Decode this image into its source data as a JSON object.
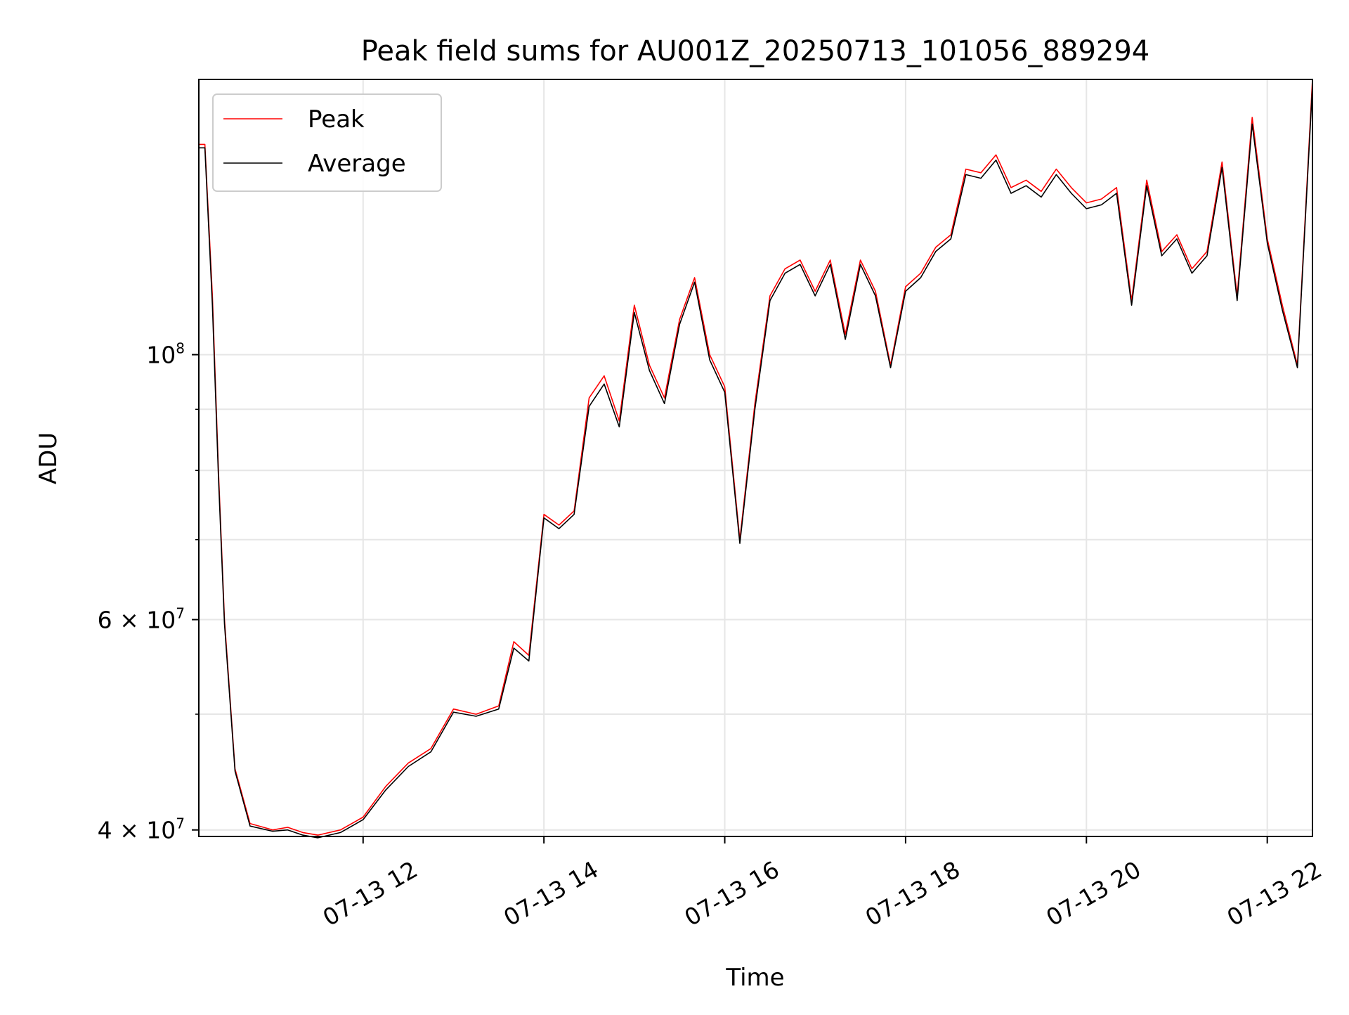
{
  "chart_data": {
    "type": "line",
    "title": "Peak field sums for AU001Z_20250713_101056_889294",
    "xlabel": "Time",
    "ylabel": "ADU",
    "xscale": "time",
    "yscale": "log",
    "grid": true,
    "legend_position": "top-left",
    "xlim": [
      "2025-07-13T10:11",
      "2025-07-13T22:30"
    ],
    "ylim": [
      39500000,
      170000000
    ],
    "x_ticks": [
      {
        "t": "2025-07-13T12:00",
        "label": "07-13 12"
      },
      {
        "t": "2025-07-13T14:00",
        "label": "07-13 14"
      },
      {
        "t": "2025-07-13T16:00",
        "label": "07-13 16"
      },
      {
        "t": "2025-07-13T18:00",
        "label": "07-13 18"
      },
      {
        "t": "2025-07-13T20:00",
        "label": "07-13 20"
      },
      {
        "t": "2025-07-13T22:00",
        "label": "07-13 22"
      }
    ],
    "y_major_ticks": [
      {
        "value": 40000000,
        "base": "4 × 10",
        "exp": "7"
      },
      {
        "value": 60000000,
        "base": "6 × 10",
        "exp": "7"
      },
      {
        "value": 100000000,
        "base": "10",
        "exp": "8"
      }
    ],
    "y_minor_gridlines": [
      50000000,
      70000000,
      80000000,
      90000000
    ],
    "series": [
      {
        "name": "Peak",
        "color": "#ff0000",
        "x": [
          "2025-07-13T10:11",
          "2025-07-13T10:15",
          "2025-07-13T10:20",
          "2025-07-13T10:24",
          "2025-07-13T10:28",
          "2025-07-13T10:35",
          "2025-07-13T10:45",
          "2025-07-13T11:00",
          "2025-07-13T11:10",
          "2025-07-13T11:20",
          "2025-07-13T11:30",
          "2025-07-13T11:45",
          "2025-07-13T12:00",
          "2025-07-13T12:15",
          "2025-07-13T12:30",
          "2025-07-13T12:45",
          "2025-07-13T13:00",
          "2025-07-13T13:15",
          "2025-07-13T13:30",
          "2025-07-13T13:40",
          "2025-07-13T13:50",
          "2025-07-13T14:00",
          "2025-07-13T14:10",
          "2025-07-13T14:20",
          "2025-07-13T14:30",
          "2025-07-13T14:40",
          "2025-07-13T14:50",
          "2025-07-13T15:00",
          "2025-07-13T15:10",
          "2025-07-13T15:20",
          "2025-07-13T15:30",
          "2025-07-13T15:40",
          "2025-07-13T15:50",
          "2025-07-13T16:00",
          "2025-07-13T16:10",
          "2025-07-13T16:20",
          "2025-07-13T16:30",
          "2025-07-13T16:40",
          "2025-07-13T16:50",
          "2025-07-13T17:00",
          "2025-07-13T17:10",
          "2025-07-13T17:20",
          "2025-07-13T17:30",
          "2025-07-13T17:40",
          "2025-07-13T17:50",
          "2025-07-13T18:00",
          "2025-07-13T18:10",
          "2025-07-13T18:20",
          "2025-07-13T18:30",
          "2025-07-13T18:40",
          "2025-07-13T18:50",
          "2025-07-13T19:00",
          "2025-07-13T19:10",
          "2025-07-13T19:20",
          "2025-07-13T19:30",
          "2025-07-13T19:40",
          "2025-07-13T19:50",
          "2025-07-13T20:00",
          "2025-07-13T20:10",
          "2025-07-13T20:20",
          "2025-07-13T20:30",
          "2025-07-13T20:40",
          "2025-07-13T20:50",
          "2025-07-13T21:00",
          "2025-07-13T21:10",
          "2025-07-13T21:20",
          "2025-07-13T21:30",
          "2025-07-13T21:40",
          "2025-07-13T21:50",
          "2025-07-13T22:00",
          "2025-07-13T22:10",
          "2025-07-13T22:20",
          "2025-07-13T22:30"
        ],
        "values": [
          150000000,
          150000000,
          112000000,
          80000000,
          60000000,
          45000000,
          40500000,
          40000000,
          40200000,
          39800000,
          39600000,
          40000000,
          41000000,
          43500000,
          45500000,
          46800000,
          50500000,
          50000000,
          50800000,
          57500000,
          56000000,
          73500000,
          72000000,
          74000000,
          92000000,
          96000000,
          88000000,
          110000000,
          98000000,
          92000000,
          107000000,
          116000000,
          100000000,
          94000000,
          70000000,
          91000000,
          112000000,
          118000000,
          120000000,
          113000000,
          120000000,
          104000000,
          120000000,
          113000000,
          98000000,
          114000000,
          117000000,
          123000000,
          126000000,
          143000000,
          142000000,
          147000000,
          138000000,
          140000000,
          137000000,
          143000000,
          138000000,
          134000000,
          135000000,
          138000000,
          111000000,
          140000000,
          122000000,
          126000000,
          118000000,
          122000000,
          145000000,
          112000000,
          158000000,
          125000000,
          110000000,
          98000000,
          170000000
        ]
      },
      {
        "name": "Average",
        "color": "#000000",
        "x": [
          "2025-07-13T10:11",
          "2025-07-13T10:15",
          "2025-07-13T10:20",
          "2025-07-13T10:24",
          "2025-07-13T10:28",
          "2025-07-13T10:35",
          "2025-07-13T10:45",
          "2025-07-13T11:00",
          "2025-07-13T11:10",
          "2025-07-13T11:20",
          "2025-07-13T11:30",
          "2025-07-13T11:45",
          "2025-07-13T12:00",
          "2025-07-13T12:15",
          "2025-07-13T12:30",
          "2025-07-13T12:45",
          "2025-07-13T13:00",
          "2025-07-13T13:15",
          "2025-07-13T13:30",
          "2025-07-13T13:40",
          "2025-07-13T13:50",
          "2025-07-13T14:00",
          "2025-07-13T14:10",
          "2025-07-13T14:20",
          "2025-07-13T14:30",
          "2025-07-13T14:40",
          "2025-07-13T14:50",
          "2025-07-13T15:00",
          "2025-07-13T15:10",
          "2025-07-13T15:20",
          "2025-07-13T15:30",
          "2025-07-13T15:40",
          "2025-07-13T15:50",
          "2025-07-13T16:00",
          "2025-07-13T16:10",
          "2025-07-13T16:20",
          "2025-07-13T16:30",
          "2025-07-13T16:40",
          "2025-07-13T16:50",
          "2025-07-13T17:00",
          "2025-07-13T17:10",
          "2025-07-13T17:20",
          "2025-07-13T17:30",
          "2025-07-13T17:40",
          "2025-07-13T17:50",
          "2025-07-13T18:00",
          "2025-07-13T18:10",
          "2025-07-13T18:20",
          "2025-07-13T18:30",
          "2025-07-13T18:40",
          "2025-07-13T18:50",
          "2025-07-13T19:00",
          "2025-07-13T19:10",
          "2025-07-13T19:20",
          "2025-07-13T19:30",
          "2025-07-13T19:40",
          "2025-07-13T19:50",
          "2025-07-13T20:00",
          "2025-07-13T20:10",
          "2025-07-13T20:20",
          "2025-07-13T20:30",
          "2025-07-13T20:40",
          "2025-07-13T20:50",
          "2025-07-13T21:00",
          "2025-07-13T21:10",
          "2025-07-13T21:20",
          "2025-07-13T21:30",
          "2025-07-13T21:40",
          "2025-07-13T21:50",
          "2025-07-13T22:00",
          "2025-07-13T22:10",
          "2025-07-13T22:20",
          "2025-07-13T22:30"
        ],
        "values": [
          149000000,
          149000000,
          110000000,
          79000000,
          59500000,
          44800000,
          40300000,
          39900000,
          40000000,
          39600000,
          39400000,
          39800000,
          40800000,
          43200000,
          45200000,
          46500000,
          50200000,
          49800000,
          50500000,
          56800000,
          55400000,
          73000000,
          71500000,
          73500000,
          90500000,
          94500000,
          87000000,
          108500000,
          97000000,
          91000000,
          106000000,
          115000000,
          99000000,
          93000000,
          69500000,
          90000000,
          111000000,
          117000000,
          119000000,
          112000000,
          119000000,
          103000000,
          119000000,
          112000000,
          97500000,
          113000000,
          116000000,
          122000000,
          125000000,
          141500000,
          140500000,
          145500000,
          136500000,
          138500000,
          135500000,
          141500000,
          136500000,
          132500000,
          133500000,
          136500000,
          110000000,
          138500000,
          121000000,
          125000000,
          117000000,
          121000000,
          143500000,
          111000000,
          156000000,
          124000000,
          109000000,
          97500000,
          168000000
        ]
      }
    ]
  }
}
